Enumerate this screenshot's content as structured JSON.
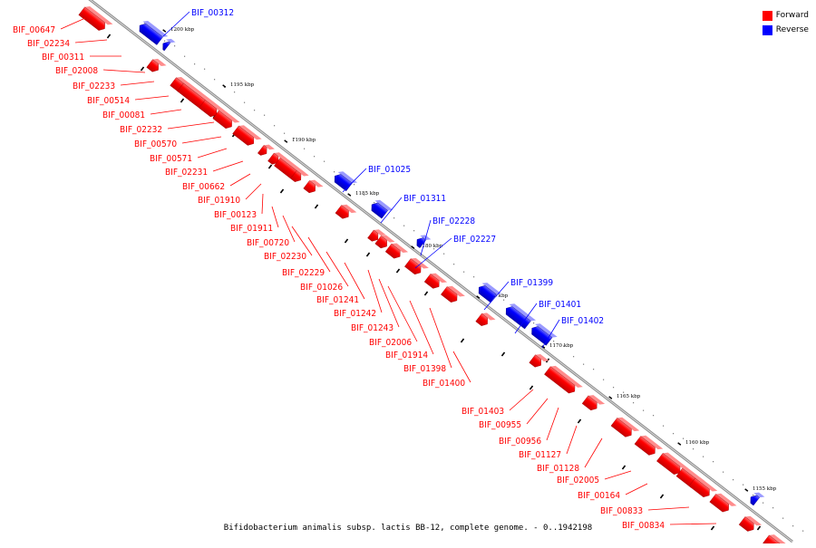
{
  "caption": "Bifidobacterium animalis subsp. lactis BB-12, complete genome. - 0..1942198",
  "legend": [
    {
      "label": "Forward",
      "color": "#ff0000"
    },
    {
      "label": "Reverse",
      "color": "#0000ff"
    }
  ],
  "colors": {
    "forward": "#ff0000",
    "reverse": "#0000ff",
    "backbone": "#8c8c8c"
  },
  "kbp_markers": [
    "1200 kbp",
    "1195 kbp",
    "1190 kbp",
    "1185 kbp",
    "1180 kbp",
    "1175 kbp",
    "1170 kbp",
    "1165 kbp",
    "1160 kbp",
    "1155 kbp"
  ],
  "forward_genes": [
    "BIF_00647",
    "BIF_02234",
    "BIF_00311",
    "BIF_02008",
    "BIF_02233",
    "BIF_00514",
    "BIF_00081",
    "BIF_02232",
    "BIF_00570",
    "BIF_00571",
    "BIF_02231",
    "BIF_00662",
    "BIF_01910",
    "BIF_00123",
    "BIF_01911",
    "BIF_00720",
    "BIF_02230",
    "BIF_02229",
    "BIF_01026",
    "BIF_01241",
    "BIF_01242",
    "BIF_01243",
    "BIF_02006",
    "BIF_01914",
    "BIF_01398",
    "BIF_01400",
    "BIF_01403",
    "BIF_00955",
    "BIF_00956",
    "BIF_01127",
    "BIF_01128",
    "BIF_02005",
    "BIF_00164",
    "BIF_00833",
    "BIF_00834"
  ],
  "reverse_genes": [
    "BIF_00312",
    "BIF_01025",
    "BIF_01311",
    "BIF_02228",
    "BIF_02227",
    "BIF_01399",
    "BIF_01401",
    "BIF_01402"
  ]
}
